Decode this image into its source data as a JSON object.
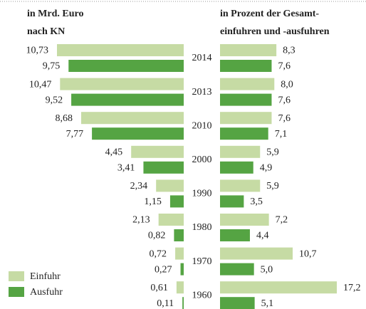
{
  "chart_data": [
    {
      "type": "bar",
      "title": [
        "in Mrd. Euro",
        "nach KN"
      ],
      "categories": [
        "2014",
        "2013",
        "2010",
        "2000",
        "1990",
        "1980",
        "1970",
        "1960"
      ],
      "series": [
        {
          "name": "Einfuhr",
          "color": "#c6dba4",
          "values": [
            10.73,
            10.47,
            8.68,
            4.45,
            2.34,
            2.13,
            0.72,
            0.61
          ],
          "value_labels": [
            "10,73",
            "10,47",
            "8,68",
            "4,45",
            "2,34",
            "2,13",
            "0,72",
            "0,61"
          ]
        },
        {
          "name": "Ausfuhr",
          "color": "#55a443",
          "values": [
            9.75,
            9.52,
            7.77,
            3.41,
            1.15,
            0.82,
            0.27,
            0.11
          ],
          "value_labels": [
            "9,75",
            "9,52",
            "7,77",
            "3,41",
            "1,15",
            "0,82",
            "0,27",
            "0,11"
          ]
        }
      ]
    },
    {
      "type": "bar",
      "title": [
        "in Prozent der Gesamt-",
        "einfuhren und -ausfuhren"
      ],
      "series": [
        {
          "color": "#c6dba4",
          "values": [
            8.3,
            8.0,
            7.6,
            5.9,
            5.9,
            7.2,
            10.7,
            17.2
          ],
          "value_labels": [
            "8,3",
            "8,0",
            "7,6",
            "5,9",
            "5,9",
            "7,2",
            "10,7",
            "17,2"
          ]
        },
        {
          "color": "#55a443",
          "values": [
            7.6,
            7.6,
            7.1,
            4.9,
            3.5,
            4.4,
            5.0,
            5.1
          ],
          "value_labels": [
            "7,6",
            "7,6",
            "7,1",
            "4,9",
            "3,5",
            "4,4",
            "5,0",
            "5,1"
          ]
        }
      ]
    }
  ]
}
